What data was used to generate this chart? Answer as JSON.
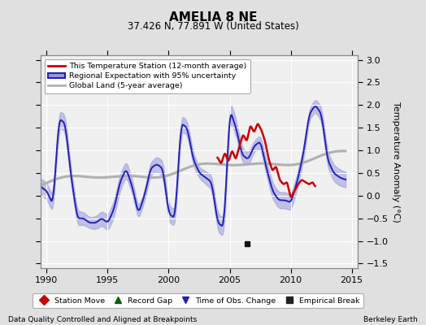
{
  "title": "AMELIA 8 NE",
  "subtitle": "37.426 N, 77.891 W (United States)",
  "ylabel": "Temperature Anomaly (°C)",
  "xlabel_left": "Data Quality Controlled and Aligned at Breakpoints",
  "xlabel_right": "Berkeley Earth",
  "xlim": [
    1989.5,
    2015.5
  ],
  "ylim": [
    -1.6,
    3.1
  ],
  "yticks": [
    -1.5,
    -1.0,
    -0.5,
    0.0,
    0.5,
    1.0,
    1.5,
    2.0,
    2.5,
    3.0
  ],
  "xticks": [
    1990,
    1995,
    2000,
    2005,
    2010,
    2015
  ],
  "bg_color": "#e0e0e0",
  "plot_bg_color": "#f0f0f0",
  "grid_color": "#ffffff",
  "regional_color": "#2020bb",
  "regional_fill_color": "#9999dd",
  "station_color": "#cc0000",
  "global_color": "#b0b0b0",
  "empirical_break_x": 2006.42,
  "empirical_break_y": -1.07,
  "legend_items": [
    {
      "label": "This Temperature Station (12-month average)",
      "color": "#cc0000",
      "lw": 2
    },
    {
      "label": "Regional Expectation with 95% uncertainty",
      "color": "#2020bb",
      "lw": 2
    },
    {
      "label": "Global Land (5-year average)",
      "color": "#b0b0b0",
      "lw": 2
    }
  ],
  "bottom_legend": [
    {
      "label": "Station Move",
      "marker": "D",
      "color": "#cc0000"
    },
    {
      "label": "Record Gap",
      "marker": "^",
      "color": "#006600"
    },
    {
      "label": "Time of Obs. Change",
      "marker": "v",
      "color": "#2020bb"
    },
    {
      "label": "Empirical Break",
      "marker": "s",
      "color": "#222222"
    }
  ]
}
